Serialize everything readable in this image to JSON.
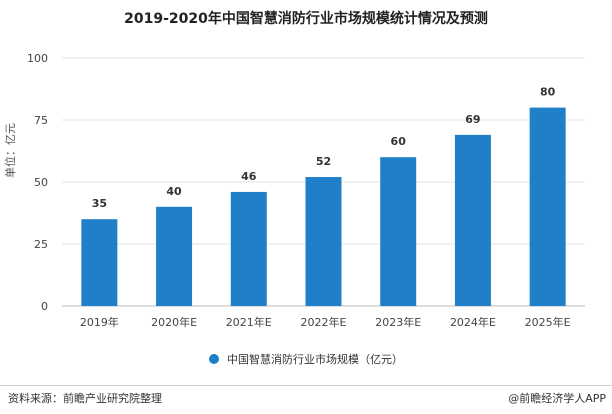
{
  "page": {
    "title": "2019-2020年中国智慧消防行业市场规模统计情况及预测",
    "source": "资料来源：前瞻产业研究院整理",
    "brand": "@前瞻经济学人APP"
  },
  "chart_data": {
    "type": "bar",
    "title": "2019-2020年中国智慧消防行业市场规模统计情况及预测",
    "ylabel": "单位：亿元",
    "xlabel": "",
    "categories": [
      "2019年",
      "2020年E",
      "2021年E",
      "2022年E",
      "2023年E",
      "2024年E",
      "2025年E"
    ],
    "series": [
      {
        "name": "中国智慧消防行业市场规模（亿元）",
        "values": [
          35,
          40,
          46,
          52,
          60,
          69,
          80
        ]
      }
    ],
    "ylim": [
      0,
      100
    ],
    "yticks": [
      0,
      25,
      50,
      75,
      100
    ],
    "grid": true,
    "legend": "bottom-center",
    "colors": {
      "bar": "#1f7fc9",
      "grid": "#e3e3e3"
    }
  }
}
